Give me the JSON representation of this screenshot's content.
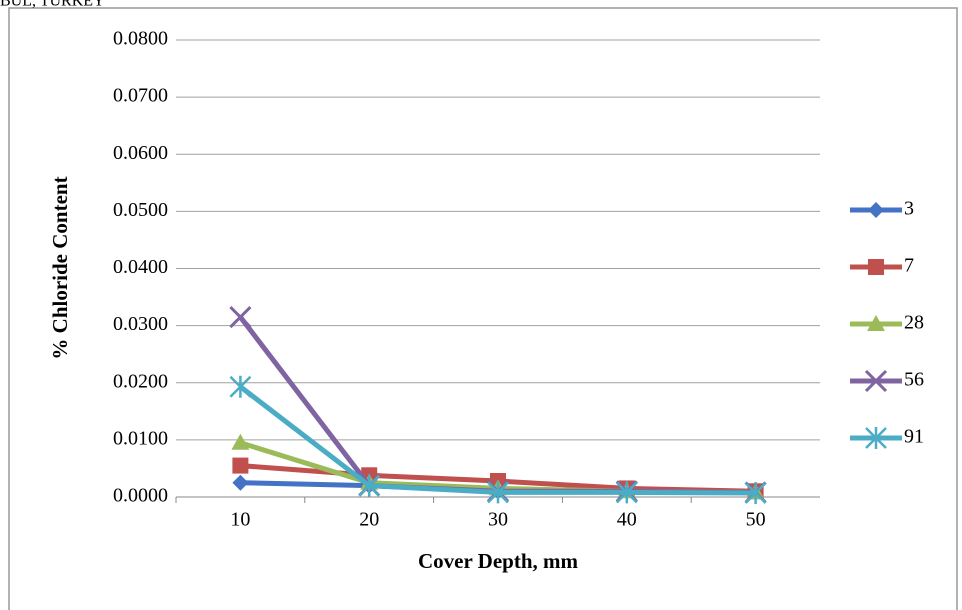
{
  "chart_data": {
    "type": "line",
    "caption": "BUL, TURKEY",
    "y_label": "% Chloride  Content",
    "x_label": "Cover Depth, mm",
    "categories": [
      "10",
      "20",
      "30",
      "40",
      "50"
    ],
    "series": [
      {
        "name": "3",
        "color": "#4472c4",
        "marker": "diamond",
        "values": [
          0.0025,
          0.002,
          0.001,
          0.001,
          0.0008
        ]
      },
      {
        "name": "7",
        "color": "#c0504d",
        "marker": "square",
        "values": [
          0.0055,
          0.0038,
          0.0028,
          0.0015,
          0.001
        ]
      },
      {
        "name": "28",
        "color": "#9bbb59",
        "marker": "triangle",
        "values": [
          0.0095,
          0.0025,
          0.0015,
          0.001,
          0.0008
        ]
      },
      {
        "name": "56",
        "color": "#8064a2",
        "marker": "x",
        "values": [
          0.0315,
          0.002,
          0.001,
          0.001,
          0.0008
        ]
      },
      {
        "name": "91",
        "color": "#4bacc6",
        "marker": "star",
        "values": [
          0.0193,
          0.002,
          0.0008,
          0.0008,
          0.0007
        ]
      }
    ],
    "ylim": [
      0,
      0.08
    ],
    "yticks": [
      {
        "value": 0,
        "label": "0.0000"
      },
      {
        "value": 0.01,
        "label": "0.0100"
      },
      {
        "value": 0.02,
        "label": "0.0200"
      },
      {
        "value": 0.03,
        "label": "0.0300"
      },
      {
        "value": 0.04,
        "label": "0.0400"
      },
      {
        "value": 0.05,
        "label": "0.0500"
      },
      {
        "value": 0.06,
        "label": "0.0600"
      },
      {
        "value": 0.07,
        "label": "0.0700"
      },
      {
        "value": 0.08,
        "label": "0.0800"
      }
    ],
    "grid": true,
    "legend": "right"
  }
}
